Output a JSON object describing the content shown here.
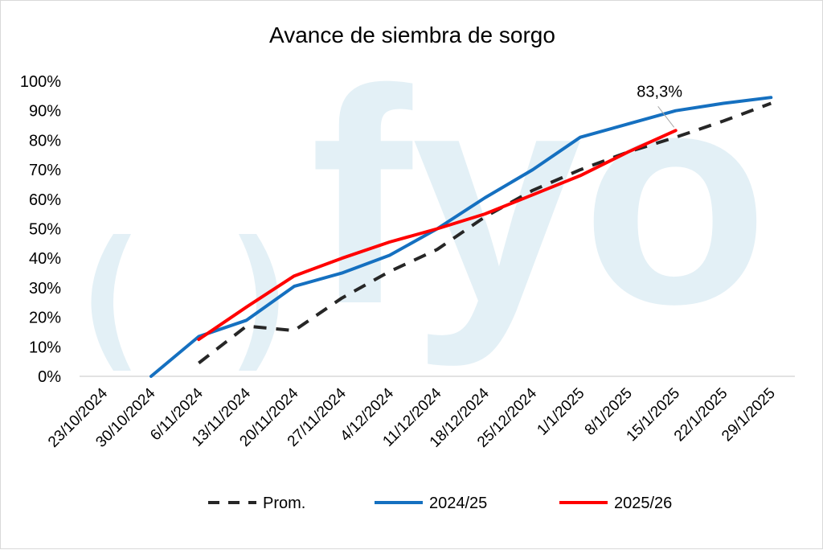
{
  "chart_data": {
    "type": "line",
    "title": "Avance de siembra de sorgo",
    "categories": [
      "23/10/2024",
      "30/10/2024",
      "6/11/2024",
      "13/11/2024",
      "20/11/2024",
      "27/11/2024",
      "4/12/2024",
      "11/12/2024",
      "18/12/2024",
      "25/12/2024",
      "1/1/2025",
      "8/1/2025",
      "15/1/2025",
      "22/1/2025",
      "29/1/2025"
    ],
    "y_ticks": [
      "0%",
      "10%",
      "20%",
      "30%",
      "40%",
      "50%",
      "60%",
      "70%",
      "80%",
      "90%",
      "100%"
    ],
    "ylim": [
      0,
      100
    ],
    "grid": false,
    "legend_position": "bottom",
    "series": [
      {
        "name": "Prom.",
        "color": "#262626",
        "style": "dashed",
        "values": [
          null,
          null,
          4.5,
          17,
          15.5,
          26.5,
          35.5,
          43,
          54,
          63,
          70,
          76,
          81,
          86.5,
          92.5
        ]
      },
      {
        "name": "2024/25",
        "color": "#1570c0",
        "style": "solid",
        "values": [
          null,
          0,
          13.5,
          19,
          30.5,
          35,
          41,
          50,
          60.5,
          70,
          81,
          85.5,
          90,
          92.5,
          94.5
        ]
      },
      {
        "name": "2025/26",
        "color": "#ff0000",
        "style": "solid",
        "values": [
          null,
          null,
          12.5,
          23.5,
          34,
          40,
          45.5,
          50,
          55,
          61.5,
          68,
          76,
          83.3,
          null,
          null
        ]
      }
    ],
    "annotations": [
      {
        "text": "83,3%",
        "series": "2025/26",
        "category": "15/1/2025"
      }
    ]
  },
  "watermark": {
    "text": "fyo",
    "color": "#e3f0f6"
  }
}
